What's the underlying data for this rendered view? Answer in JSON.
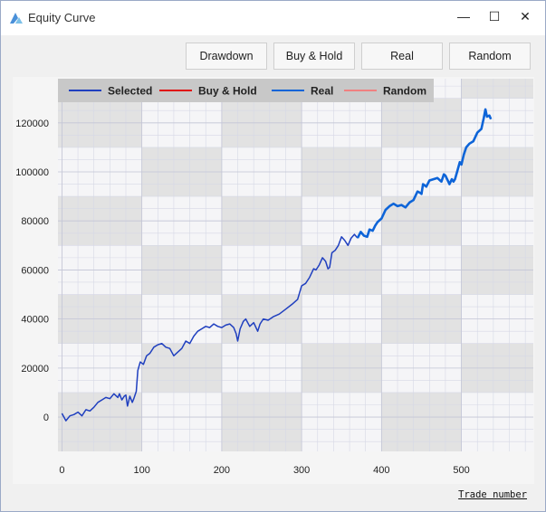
{
  "window": {
    "title": "Equity Curve",
    "controls": {
      "minimize": "—",
      "maximize": "☐",
      "close": "✕"
    }
  },
  "toolbar": {
    "buttons": [
      "Drawdown",
      "Buy & Hold",
      "Real",
      "Random"
    ]
  },
  "chart_data": {
    "type": "line",
    "xlabel": "Trade number",
    "xlim": [
      -5,
      590
    ],
    "ylim": [
      -14000,
      138000
    ],
    "xticks": [
      0,
      100,
      200,
      300,
      400,
      500
    ],
    "yticks": [
      0,
      20000,
      40000,
      60000,
      80000,
      100000,
      120000
    ],
    "grid": true,
    "legend": {
      "position": "top-left",
      "entries": [
        {
          "name": "Selected",
          "color": "#1f3fbf"
        },
        {
          "name": "Buy & Hold",
          "color": "#e01010"
        },
        {
          "name": "Real",
          "color": "#0d64d8"
        },
        {
          "name": "Random",
          "color": "#f08080"
        }
      ]
    },
    "series": [
      {
        "name": "Selected",
        "color": "#1f3fbf",
        "points": [
          [
            0,
            1500
          ],
          [
            5,
            -1500
          ],
          [
            10,
            500
          ],
          [
            15,
            1000
          ],
          [
            20,
            2000
          ],
          [
            25,
            500
          ],
          [
            30,
            3000
          ],
          [
            35,
            2500
          ],
          [
            40,
            4000
          ],
          [
            45,
            6000
          ],
          [
            50,
            7000
          ],
          [
            55,
            8000
          ],
          [
            60,
            7500
          ],
          [
            65,
            9500
          ],
          [
            70,
            8000
          ],
          [
            72,
            9500
          ],
          [
            75,
            7000
          ],
          [
            78,
            8500
          ],
          [
            80,
            9000
          ],
          [
            82,
            4500
          ],
          [
            85,
            8500
          ],
          [
            88,
            6000
          ],
          [
            90,
            7500
          ],
          [
            93,
            10500
          ],
          [
            95,
            19000
          ],
          [
            98,
            22500
          ],
          [
            102,
            21500
          ],
          [
            106,
            25000
          ],
          [
            110,
            26000
          ],
          [
            115,
            28500
          ],
          [
            120,
            29500
          ],
          [
            125,
            30000
          ],
          [
            130,
            28500
          ],
          [
            135,
            28000
          ],
          [
            140,
            25000
          ],
          [
            145,
            26500
          ],
          [
            150,
            28000
          ],
          [
            155,
            31000
          ],
          [
            160,
            30000
          ],
          [
            165,
            33000
          ],
          [
            170,
            35000
          ],
          [
            175,
            36000
          ],
          [
            180,
            37000
          ],
          [
            185,
            36500
          ],
          [
            190,
            38000
          ],
          [
            195,
            37000
          ],
          [
            200,
            36500
          ],
          [
            205,
            37500
          ],
          [
            210,
            38000
          ],
          [
            215,
            36500
          ],
          [
            218,
            34000
          ],
          [
            220,
            31000
          ],
          [
            223,
            36000
          ],
          [
            227,
            39000
          ],
          [
            230,
            40000
          ],
          [
            235,
            37000
          ],
          [
            240,
            38500
          ],
          [
            245,
            35000
          ],
          [
            248,
            38000
          ],
          [
            252,
            40000
          ],
          [
            258,
            39500
          ],
          [
            265,
            41000
          ],
          [
            272,
            42000
          ],
          [
            280,
            44000
          ],
          [
            288,
            46000
          ],
          [
            295,
            48000
          ],
          [
            300,
            53500
          ],
          [
            305,
            54500
          ],
          [
            310,
            57000
          ],
          [
            315,
            60500
          ],
          [
            318,
            60000
          ],
          [
            322,
            62000
          ],
          [
            326,
            65000
          ],
          [
            330,
            63500
          ],
          [
            333,
            60500
          ],
          [
            335,
            61000
          ],
          [
            338,
            67000
          ],
          [
            342,
            68000
          ],
          [
            346,
            70000
          ],
          [
            350,
            73500
          ],
          [
            354,
            72000
          ],
          [
            358,
            70000
          ],
          [
            362,
            73000
          ],
          [
            366,
            74500
          ],
          [
            370,
            73000
          ]
        ]
      },
      {
        "name": "Real",
        "color": "#0d64d8",
        "points": [
          [
            370,
            73000
          ],
          [
            374,
            75500
          ],
          [
            378,
            74000
          ],
          [
            382,
            73500
          ],
          [
            385,
            76500
          ],
          [
            389,
            76000
          ],
          [
            392,
            78000
          ],
          [
            395,
            79500
          ],
          [
            400,
            81000
          ],
          [
            405,
            84500
          ],
          [
            410,
            86000
          ],
          [
            415,
            87000
          ],
          [
            420,
            86000
          ],
          [
            425,
            86500
          ],
          [
            430,
            85500
          ],
          [
            435,
            87500
          ],
          [
            440,
            88500
          ],
          [
            445,
            92000
          ],
          [
            448,
            91500
          ],
          [
            450,
            91000
          ],
          [
            452,
            95000
          ],
          [
            456,
            94000
          ],
          [
            460,
            96500
          ],
          [
            465,
            97000
          ],
          [
            470,
            97500
          ],
          [
            475,
            96000
          ],
          [
            478,
            99000
          ],
          [
            480,
            98500
          ],
          [
            485,
            95000
          ],
          [
            488,
            97000
          ],
          [
            490,
            96000
          ],
          [
            492,
            97000
          ],
          [
            495,
            100500
          ],
          [
            498,
            104000
          ],
          [
            500,
            103000
          ],
          [
            503,
            107000
          ],
          [
            506,
            110000
          ],
          [
            510,
            111500
          ],
          [
            515,
            112500
          ],
          [
            520,
            116000
          ],
          [
            525,
            117500
          ],
          [
            528,
            122000
          ],
          [
            530,
            125500
          ],
          [
            532,
            122500
          ],
          [
            535,
            123000
          ],
          [
            537,
            121500
          ]
        ]
      }
    ]
  }
}
